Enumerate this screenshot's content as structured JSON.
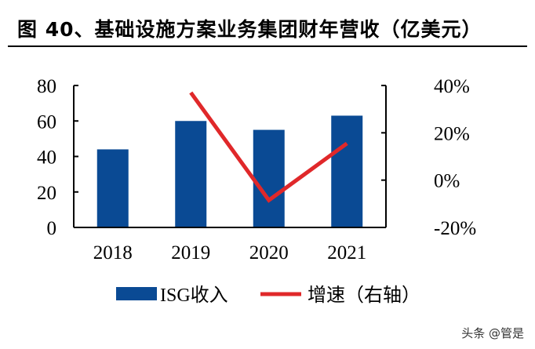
{
  "chart_data": {
    "type": "bar",
    "title": "图 40、基础设施方案业务集团财年营收（亿美元）",
    "categories": [
      "2018",
      "2019",
      "2020",
      "2021"
    ],
    "series": [
      {
        "name": "ISG收入",
        "type": "bar",
        "axis": "left",
        "color": "#0a4a94",
        "values": [
          44,
          60,
          55,
          63
        ]
      },
      {
        "name": "增速（右轴）",
        "type": "line",
        "axis": "right",
        "color": "#e0282a",
        "values": [
          null,
          37,
          -8.5,
          15.5
        ]
      }
    ],
    "ylim": [
      0,
      80
    ],
    "yticks": [
      "0",
      "20",
      "40",
      "60",
      "80"
    ],
    "y2lim": [
      -20,
      40
    ],
    "y2ticks": [
      "-20%",
      "0%",
      "20%",
      "40%"
    ],
    "grid": false,
    "legend": "bottom"
  },
  "watermark": "头条 @管是"
}
